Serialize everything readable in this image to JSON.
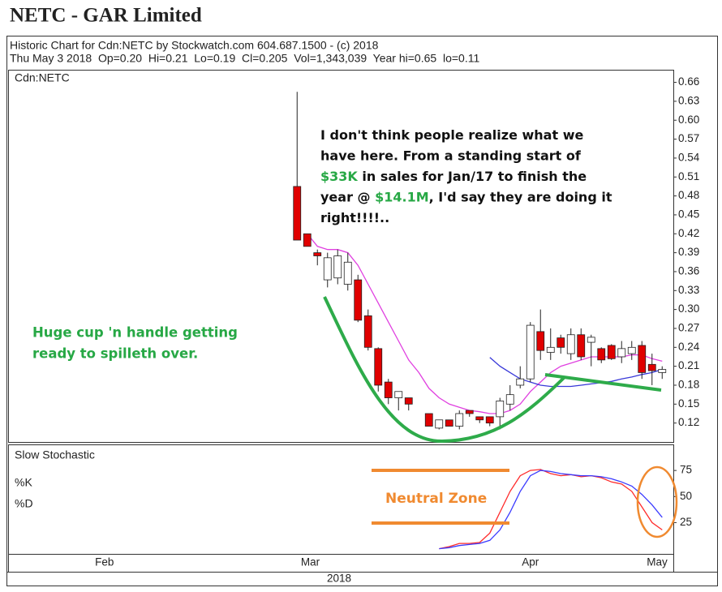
{
  "title": "NETC - GAR Limited",
  "chart_data": {
    "type": "candlestick",
    "header": [
      "Historic Chart for Cdn:NETC by Stockwatch.com 604.687.1500 - (c) 2018",
      "Thu May 3 2018  Op=0.20  Hi=0.21  Lo=0.19  Cl=0.205  Vol=1,343,039  Year hi=0.65  lo=0.11"
    ],
    "panel_label": "Cdn:NETC",
    "x": [
      0,
      1,
      2,
      3,
      4,
      5,
      6,
      7,
      8,
      9,
      10,
      11,
      12,
      13,
      14,
      15,
      16,
      17,
      18,
      19,
      20,
      21,
      22,
      23,
      24,
      25,
      26,
      27,
      28,
      29,
      30,
      31,
      32,
      33,
      34,
      35,
      36
    ],
    "xlim": [
      -28.5,
      37.1
    ],
    "xticks": [
      {
        "value": -19,
        "label": "Feb"
      },
      {
        "value": 1.3,
        "label": "Mar"
      },
      {
        "value": 23,
        "label": "Apr"
      },
      {
        "value": 35.5,
        "label": "May"
      }
    ],
    "year_label": "2018",
    "ylim": [
      0.09,
      0.68
    ],
    "yticks": [
      0.12,
      0.15,
      0.18,
      0.21,
      0.24,
      0.27,
      {
        "value": 0.3,
        "label": "0.30"
      },
      0.33,
      0.36,
      0.39,
      0.42,
      0.45,
      0.48,
      0.51,
      0.54,
      0.57,
      {
        "value": 0.6,
        "label": "0.60"
      },
      0.63,
      0.66
    ],
    "open": [
      0.495,
      0.42,
      0.39,
      0.347,
      0.35,
      0.34,
      0.347,
      0.29,
      0.238,
      0.185,
      0.16,
      0.16,
      null,
      0.135,
      0.112,
      0.125,
      0.115,
      0.14,
      0.13,
      0.13,
      0.13,
      0.15,
      0.18,
      0.19,
      0.265,
      0.232,
      0.255,
      0.23,
      0.26,
      0.248,
      0.238,
      0.243,
      0.225,
      0.23,
      0.243,
      0.213,
      0.2
    ],
    "high": [
      0.645,
      0.42,
      0.395,
      0.39,
      0.395,
      0.39,
      0.355,
      0.3,
      0.24,
      0.19,
      0.17,
      0.16,
      null,
      0.135,
      0.125,
      0.125,
      0.14,
      0.14,
      0.13,
      0.13,
      0.16,
      0.18,
      0.21,
      0.28,
      0.3,
      0.27,
      0.26,
      0.27,
      0.27,
      0.26,
      0.24,
      0.245,
      0.25,
      0.25,
      0.25,
      0.23,
      0.21
    ],
    "low": [
      0.41,
      0.4,
      0.37,
      0.335,
      0.34,
      0.33,
      0.28,
      0.235,
      0.17,
      0.15,
      0.14,
      0.14,
      null,
      0.115,
      0.11,
      0.115,
      0.11,
      0.13,
      0.12,
      0.115,
      0.11,
      0.14,
      0.175,
      0.185,
      0.22,
      0.22,
      0.23,
      0.22,
      0.22,
      0.21,
      0.215,
      0.22,
      0.215,
      0.22,
      0.19,
      0.18,
      0.19
    ],
    "close": [
      0.41,
      0.4,
      0.385,
      0.382,
      0.385,
      0.375,
      0.283,
      0.24,
      0.18,
      0.16,
      0.17,
      0.15,
      null,
      0.115,
      0.125,
      0.115,
      0.135,
      0.135,
      0.125,
      0.12,
      0.155,
      0.165,
      0.19,
      0.275,
      0.235,
      0.24,
      0.24,
      0.26,
      0.225,
      0.256,
      0.22,
      0.222,
      0.238,
      0.24,
      0.2,
      0.203,
      0.205
    ],
    "up_color": "#ffffff",
    "down_color": "#e00000",
    "series": [
      {
        "color": "#e040e0",
        "values": [
          null,
          0.42,
          0.4,
          0.395,
          0.395,
          0.39,
          0.37,
          0.34,
          0.31,
          0.28,
          0.25,
          0.22,
          0.2,
          0.175,
          0.16,
          0.15,
          0.145,
          0.14,
          0.138,
          0.135,
          0.135,
          0.14,
          0.15,
          0.17,
          0.185,
          0.2,
          0.21,
          0.215,
          0.22,
          0.225,
          0.225,
          0.225,
          0.225,
          0.228,
          0.228,
          0.222,
          0.218
        ]
      },
      {
        "color": "#3838d8",
        "values": [
          null,
          null,
          null,
          null,
          null,
          null,
          null,
          null,
          null,
          null,
          null,
          null,
          null,
          null,
          null,
          null,
          null,
          null,
          null,
          0.224,
          0.21,
          0.2,
          0.19,
          0.185,
          0.18,
          0.178,
          0.178,
          0.178,
          0.18,
          0.182,
          0.184,
          0.186,
          0.19,
          0.193,
          0.197,
          0.2,
          0.205
        ]
      }
    ],
    "annotations": {
      "comment": [
        [
          {
            "text": "I don't think people realize what we"
          }
        ],
        [
          {
            "text": "have here. From a standing start of"
          }
        ],
        [
          {
            "text": "$33K",
            "color": "#27a845"
          },
          {
            "text": " in sales for Jan/17 to finish the"
          }
        ],
        [
          {
            "text": "year @ "
          },
          {
            "text": "$14.1M",
            "color": "#27a845"
          },
          {
            "text": ", I'd say they are doing it"
          }
        ],
        [
          {
            "text": "right!!!!.."
          }
        ]
      ],
      "cup_note": [
        "Huge cup 'n handle getting",
        "ready to spilleth over."
      ],
      "cup_color": "#27a845",
      "zone_label": "Neutral Zone",
      "zone_color": "#f08a30"
    },
    "stochastic": {
      "title": "Slow Stochastic",
      "ylim": [
        -5,
        100
      ],
      "yticks": [
        25,
        50,
        75
      ],
      "series": [
        {
          "name": "%K",
          "color": "#ff2a2a",
          "values": [
            null,
            null,
            null,
            null,
            null,
            null,
            null,
            null,
            null,
            null,
            null,
            null,
            null,
            null,
            0,
            2,
            5,
            5,
            6,
            15,
            35,
            55,
            70,
            75,
            76,
            72,
            70,
            71,
            69,
            70,
            68,
            64,
            62,
            55,
            40,
            25,
            18
          ]
        },
        {
          "name": "%D",
          "color": "#3a3aff",
          "values": [
            null,
            null,
            null,
            null,
            null,
            null,
            null,
            null,
            null,
            null,
            null,
            null,
            null,
            null,
            0,
            1,
            3,
            4,
            5,
            8,
            18,
            35,
            55,
            70,
            75,
            74,
            72,
            71,
            70,
            70,
            69,
            67,
            64,
            60,
            52,
            42,
            30
          ]
        }
      ]
    }
  }
}
